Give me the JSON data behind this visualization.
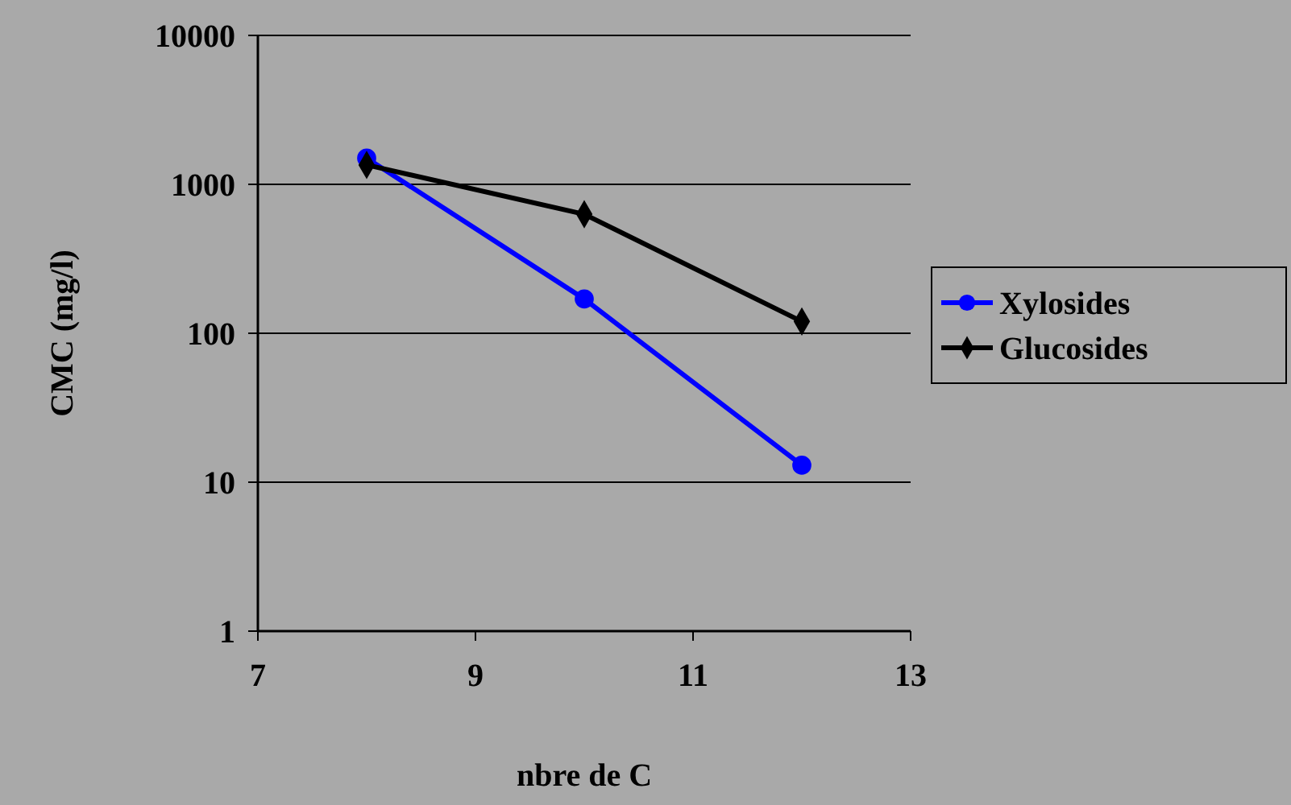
{
  "chart_data": {
    "type": "line",
    "xlabel": "nbre de C",
    "ylabel": "CMC (mg/l)",
    "log": "y",
    "grid": "y",
    "legend": "right",
    "line_style": "solid",
    "xlim": [
      7,
      13
    ],
    "xticks": [
      7,
      9,
      11,
      13
    ],
    "ylim": [
      1,
      10000
    ],
    "yticks": [
      1,
      10,
      100,
      1000,
      10000
    ],
    "x": [
      8,
      10,
      12
    ],
    "series": [
      {
        "name": "Xylosides",
        "color": "#0000ff",
        "marker": "circle",
        "values": [
          1500,
          170,
          13
        ]
      },
      {
        "name": "Glucosides",
        "color": "#000000",
        "marker": "diamond",
        "values": [
          1350,
          630,
          120
        ]
      }
    ]
  }
}
